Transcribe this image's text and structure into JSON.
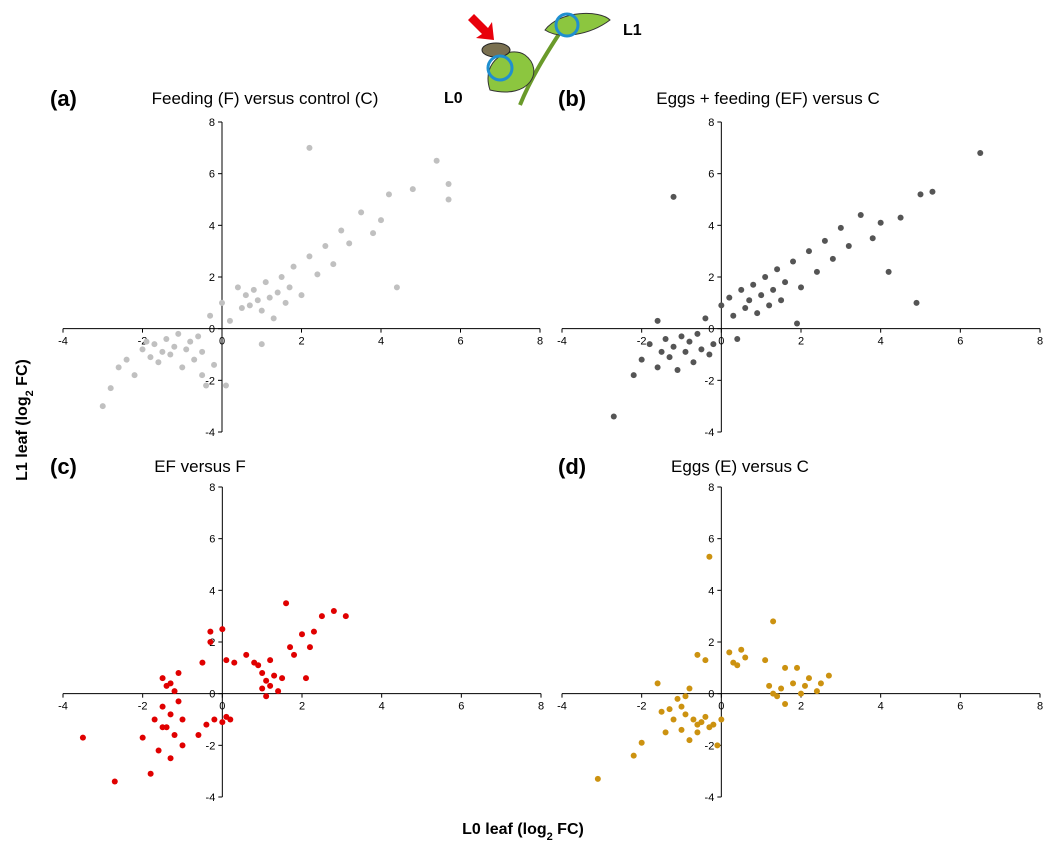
{
  "figure": {
    "illustration_labels": [
      "L0",
      "L1"
    ],
    "x_label": {
      "text": "L0 leaf (log",
      "sub": "2",
      "end": " FC)"
    },
    "y_label": {
      "text": "L1 leaf (log",
      "sub": "2",
      "end": " FC)"
    }
  },
  "chart_data": [
    {
      "type": "scatter",
      "label": "(a)",
      "title": "Feeding (F) versus control (C)",
      "color": "#c0c0c0",
      "xlim": [
        -4,
        8
      ],
      "ylim": [
        -4,
        8
      ],
      "xticks": [
        -4,
        -2,
        0,
        2,
        4,
        6,
        8
      ],
      "yticks": [
        -4,
        -2,
        0,
        2,
        4,
        6,
        8
      ],
      "x": [
        -3,
        -2.8,
        -2.6,
        -2.4,
        -2.2,
        -2,
        -1.9,
        -1.8,
        -1.7,
        -1.6,
        -1.5,
        -1.4,
        -1.3,
        -1.2,
        -1.1,
        -1,
        -0.9,
        -0.8,
        -0.7,
        -0.6,
        -0.5,
        -0.4,
        -0.3,
        -0.2,
        0,
        0.2,
        0.4,
        0.5,
        0.6,
        0.7,
        0.8,
        0.9,
        1,
        1.1,
        1.2,
        1.3,
        1.4,
        1.5,
        1.6,
        1.7,
        1.8,
        2,
        2.2,
        2.4,
        2.6,
        2.8,
        3,
        3.2,
        3.5,
        3.8,
        4,
        4.2,
        4.4,
        4.8,
        5.4,
        5.7,
        5.7,
        2.2,
        0.1,
        -0.5,
        1
      ],
      "y": [
        -3,
        -2.3,
        -1.5,
        -1.2,
        -1.8,
        -0.8,
        -0.5,
        -1.1,
        -0.6,
        -1.3,
        -0.9,
        -0.4,
        -1,
        -0.7,
        -0.2,
        -1.5,
        -0.8,
        -0.5,
        -1.2,
        -0.3,
        -0.9,
        -2.2,
        0.5,
        -1.4,
        1,
        0.3,
        1.6,
        0.8,
        1.3,
        0.9,
        1.5,
        1.1,
        0.7,
        1.8,
        1.2,
        0.4,
        1.4,
        2,
        1,
        1.6,
        2.4,
        1.3,
        2.8,
        2.1,
        3.2,
        2.5,
        3.8,
        3.3,
        4.5,
        3.7,
        4.2,
        5.2,
        1.6,
        5.4,
        6.5,
        5.6,
        5,
        7,
        -2.2,
        -1.8,
        -0.6
      ]
    },
    {
      "type": "scatter",
      "label": "(b)",
      "title": "Eggs + feeding (EF) versus C",
      "color": "#555555",
      "xlim": [
        -4,
        8
      ],
      "ylim": [
        -4,
        8
      ],
      "xticks": [
        -4,
        -2,
        0,
        2,
        4,
        6,
        8
      ],
      "yticks": [
        -4,
        -2,
        0,
        2,
        4,
        6,
        8
      ],
      "x": [
        -2.7,
        -2.2,
        -2,
        -1.8,
        -1.6,
        -1.5,
        -1.4,
        -1.3,
        -1.2,
        -1.1,
        -1,
        -0.9,
        -0.8,
        -0.7,
        -0.6,
        -0.5,
        -0.4,
        -0.3,
        -0.2,
        0,
        0.2,
        0.3,
        0.5,
        0.6,
        0.7,
        0.8,
        0.9,
        1,
        1.1,
        1.2,
        1.3,
        1.4,
        1.5,
        1.6,
        1.8,
        2,
        2.2,
        2.4,
        2.6,
        2.8,
        3,
        3.2,
        3.5,
        3.8,
        4,
        4.2,
        4.5,
        4.9,
        5,
        5.3,
        6.5,
        -1.2,
        -1.6,
        0.4,
        1.9
      ],
      "y": [
        -3.4,
        -1.8,
        -1.2,
        -0.6,
        -1.5,
        -0.9,
        -0.4,
        -1.1,
        -0.7,
        -1.6,
        -0.3,
        -0.9,
        -0.5,
        -1.3,
        -0.2,
        -0.8,
        0.4,
        -1,
        -0.6,
        0.9,
        1.2,
        0.5,
        1.5,
        0.8,
        1.1,
        1.7,
        0.6,
        1.3,
        2,
        0.9,
        1.5,
        2.3,
        1.1,
        1.8,
        2.6,
        1.6,
        3,
        2.2,
        3.4,
        2.7,
        3.9,
        3.2,
        4.4,
        3.5,
        4.1,
        2.2,
        4.3,
        1,
        5.2,
        5.3,
        6.8,
        5.1,
        0.3,
        -0.4,
        0.2
      ]
    },
    {
      "type": "scatter",
      "label": "(c)",
      "title": "EF versus F",
      "color": "#e00000",
      "xlim": [
        -4,
        8
      ],
      "ylim": [
        -4,
        8
      ],
      "xticks": [
        -4,
        -2,
        0,
        2,
        4,
        6,
        8
      ],
      "yticks": [
        -4,
        -2,
        0,
        2,
        4,
        6,
        8
      ],
      "x": [
        -3.5,
        -2.7,
        -2,
        -1.8,
        -1.7,
        -1.6,
        -1.5,
        -1.5,
        -1.4,
        -1.4,
        -1.3,
        -1.3,
        -1.2,
        -1.2,
        -1.1,
        -1.1,
        -1,
        -1,
        -1.5,
        -1.3,
        -0.6,
        -0.4,
        -0.2,
        0,
        0.1,
        0.2,
        -0.3,
        0,
        0.1,
        0.3,
        -0.5,
        0.6,
        0.9,
        1,
        1,
        1.1,
        1.1,
        1.2,
        1.2,
        1.3,
        1.4,
        1.5,
        1.6,
        1.7,
        1.8,
        2,
        2.1,
        2.2,
        2.3,
        2.5,
        2.8,
        3.1,
        -0.3,
        0.8
      ],
      "y": [
        -1.7,
        -3.4,
        -1.7,
        -3.1,
        -1,
        -2.2,
        0.6,
        -0.5,
        0.3,
        -1.3,
        -0.8,
        -2.5,
        0.1,
        -1.6,
        -0.3,
        0.8,
        -1,
        -2,
        -1.3,
        0.4,
        -1.6,
        -1.2,
        -1,
        -1.1,
        -0.9,
        -1,
        2.4,
        2.5,
        1.3,
        1.2,
        1.2,
        1.5,
        1.1,
        0.2,
        0.8,
        0.5,
        -0.1,
        0.3,
        1.3,
        0.7,
        0.1,
        0.6,
        3.5,
        1.8,
        1.5,
        2.3,
        0.6,
        1.8,
        2.4,
        3,
        3.2,
        3,
        2,
        1.2
      ]
    },
    {
      "type": "scatter",
      "label": "(d)",
      "title": "Eggs (E) versus C",
      "color": "#cc9210",
      "xlim": [
        -4,
        8
      ],
      "ylim": [
        -4,
        8
      ],
      "xticks": [
        -4,
        -2,
        0,
        2,
        4,
        6,
        8
      ],
      "yticks": [
        -4,
        -2,
        0,
        2,
        4,
        6,
        8
      ],
      "x": [
        -3.1,
        -2.2,
        -2,
        -1.6,
        -1.5,
        -1.3,
        -1.2,
        -1,
        -1,
        -0.9,
        -0.8,
        -0.8,
        -0.7,
        -0.6,
        -0.5,
        -0.4,
        -0.3,
        -0.2,
        0,
        -0.6,
        -0.1,
        -0.3,
        -0.6,
        -0.4,
        0.3,
        0.4,
        0.5,
        0.6,
        0.2,
        1.3,
        1.1,
        1.2,
        1.3,
        1.4,
        1.5,
        1.6,
        1.8,
        2,
        2.1,
        2.2,
        1.9,
        2.5,
        2.7,
        2.4,
        1.6,
        -1.1,
        -0.9,
        -1.4
      ],
      "y": [
        -3.3,
        -2.4,
        -1.9,
        0.4,
        -0.7,
        -0.6,
        -1,
        -1.4,
        -0.5,
        -0.1,
        0.2,
        -1.8,
        -1,
        -1.2,
        -1.1,
        -0.9,
        -1.3,
        -1.2,
        -1,
        -1.5,
        -2,
        5.3,
        1.5,
        1.3,
        1.2,
        1.1,
        1.7,
        1.4,
        1.6,
        2.8,
        1.3,
        0.3,
        0,
        -0.1,
        0.2,
        -0.4,
        0.4,
        0,
        0.3,
        0.6,
        1,
        0.4,
        0.7,
        0.1,
        1,
        -0.2,
        -0.8,
        -1.5
      ]
    }
  ]
}
